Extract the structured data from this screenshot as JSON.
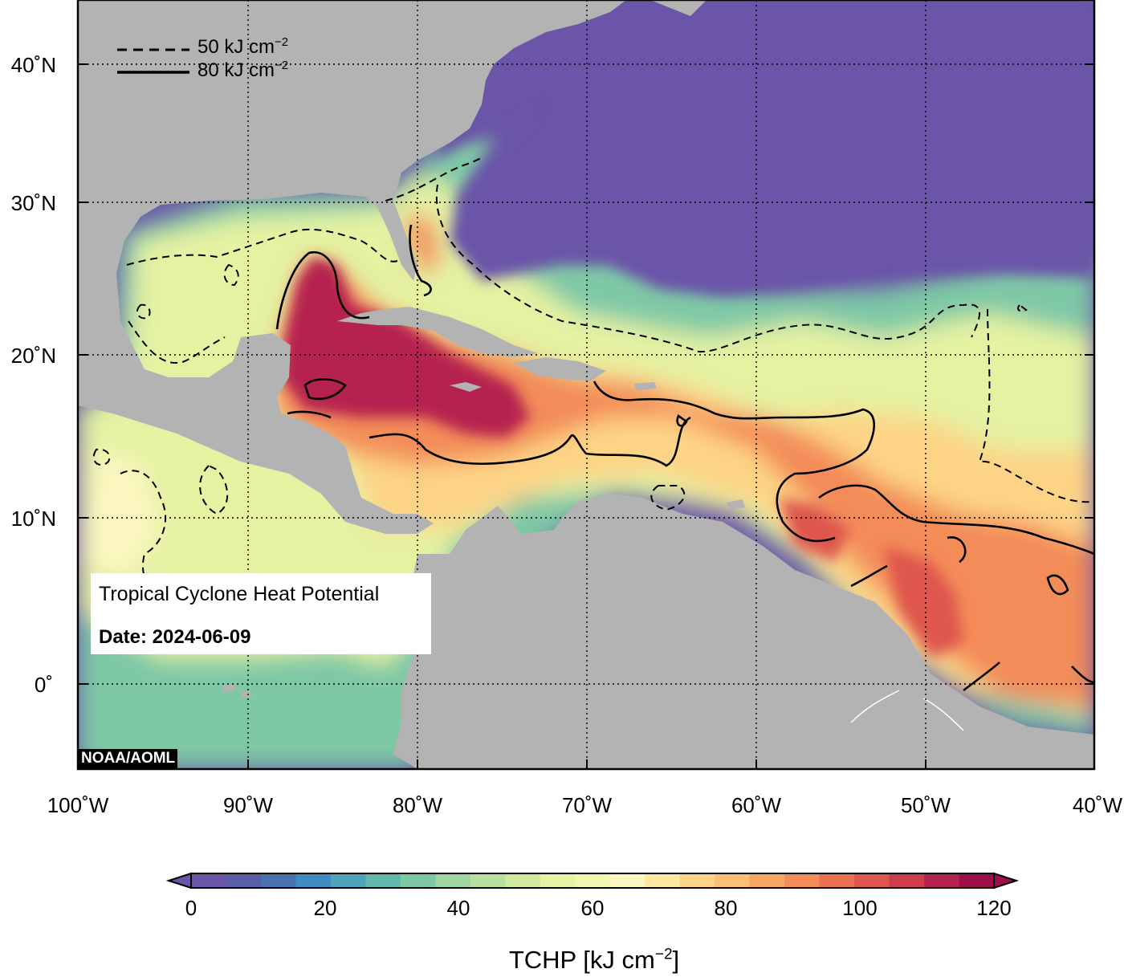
{
  "legend": {
    "dashed_label": "50 kJ cm",
    "solid_label": "80 kJ cm",
    "exponent": "−2"
  },
  "info_box": {
    "title": "Tropical Cyclone Heat Potential",
    "date_line": "Date: 2024-06-09"
  },
  "credit": "NOAA/AOML",
  "lat_labels": [
    "40˚N",
    "30˚N",
    "20˚N",
    "10˚N",
    "0˚"
  ],
  "lon_labels": [
    "100˚W",
    "90˚W",
    "80˚W",
    "70˚W",
    "60˚W",
    "50˚W",
    "40˚W"
  ],
  "colorbar": {
    "ticks": [
      "0",
      "20",
      "40",
      "60",
      "80",
      "100",
      "120"
    ],
    "label": "TCHP [kJ cm",
    "label_exponent": "−2",
    "label_close": "]",
    "colors": [
      "#6a55a8",
      "#5a5ea9",
      "#4a72b0",
      "#3f8cc0",
      "#4ca4bd",
      "#62b8ad",
      "#7ec8a6",
      "#9dd5a3",
      "#b8e09e",
      "#d0eaa0",
      "#e4f2a2",
      "#f2f7b0",
      "#fbf6c0",
      "#fde8a0",
      "#fdd486",
      "#fcbf73",
      "#f9a562",
      "#f38c58",
      "#ea7052",
      "#de564d",
      "#cc3e4e",
      "#b52450",
      "#9e0e4d"
    ],
    "lower": "0",
    "upper": "120"
  },
  "colors": {
    "land": "#b3b3b3",
    "cold_ocean": "#6a55a8",
    "hot_ocean": "#a3104f",
    "frame": "#000000"
  }
}
